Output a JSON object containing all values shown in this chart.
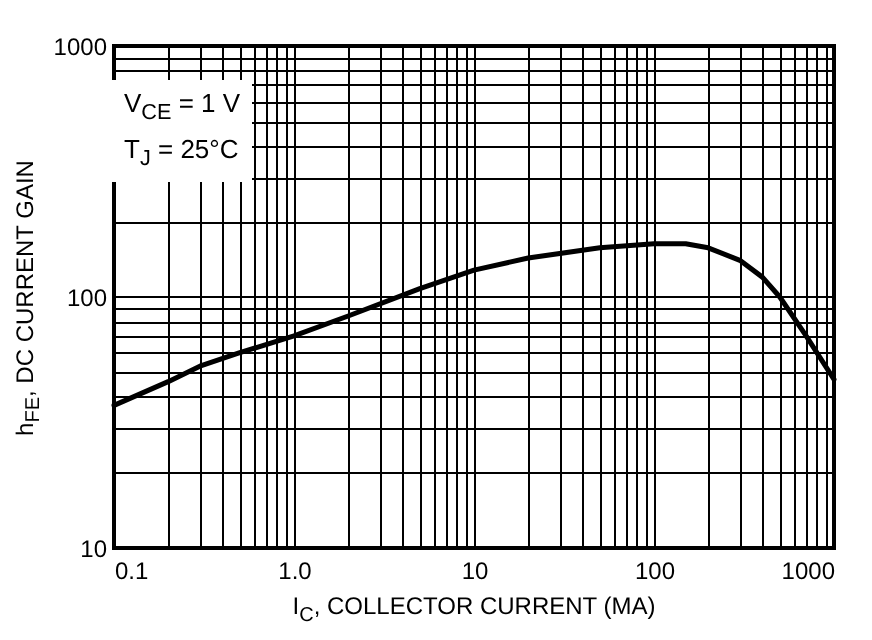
{
  "chart_data": {
    "type": "line",
    "xlabel": "I$_{C}$, COLLECTOR CURRENT (MA)",
    "ylabel": "h$_{FE}$, DC CURRENT GAIN",
    "annotations": [
      "V$_{CE}$ = 1 V",
      "T$_{J}$ = 25°C"
    ],
    "log": "xy",
    "grid": true,
    "xlim": [
      0.1,
      1000
    ],
    "ylim": [
      10,
      1000
    ],
    "xticks": [
      {
        "value": 0.1,
        "label": "0.1"
      },
      {
        "value": 0.2,
        "label": null
      },
      {
        "value": 0.3,
        "label": null
      },
      {
        "value": 0.4,
        "label": null
      },
      {
        "value": 0.5,
        "label": null
      },
      {
        "value": 0.6,
        "label": null
      },
      {
        "value": 0.7,
        "label": null
      },
      {
        "value": 0.8,
        "label": null
      },
      {
        "value": 0.9,
        "label": null
      },
      {
        "value": 1,
        "label": "1.0"
      },
      {
        "value": 2,
        "label": null
      },
      {
        "value": 3,
        "label": null
      },
      {
        "value": 4,
        "label": null
      },
      {
        "value": 5,
        "label": null
      },
      {
        "value": 6,
        "label": null
      },
      {
        "value": 7,
        "label": null
      },
      {
        "value": 8,
        "label": null
      },
      {
        "value": 9,
        "label": null
      },
      10,
      {
        "value": 20,
        "label": null
      },
      {
        "value": 30,
        "label": null
      },
      {
        "value": 40,
        "label": null
      },
      {
        "value": 50,
        "label": null
      },
      {
        "value": 60,
        "label": null
      },
      {
        "value": 70,
        "label": null
      },
      {
        "value": 80,
        "label": null
      },
      {
        "value": 90,
        "label": null
      },
      100,
      {
        "value": 200,
        "label": null
      },
      {
        "value": 300,
        "label": null
      },
      {
        "value": 400,
        "label": null
      },
      {
        "value": 500,
        "label": null
      },
      {
        "value": 600,
        "label": null
      },
      {
        "value": 700,
        "label": null
      },
      {
        "value": 800,
        "label": null
      },
      {
        "value": 900,
        "label": null
      },
      1000
    ],
    "yticks": [
      10,
      {
        "value": 20,
        "label": null
      },
      {
        "value": 30,
        "label": null
      },
      {
        "value": 40,
        "label": null
      },
      {
        "value": 50,
        "label": null
      },
      {
        "value": 60,
        "label": null
      },
      {
        "value": 70,
        "label": null
      },
      {
        "value": 80,
        "label": null
      },
      {
        "value": 90,
        "label": null
      },
      100,
      {
        "value": 200,
        "label": null
      },
      {
        "value": 300,
        "label": null
      },
      {
        "value": 400,
        "label": null
      },
      {
        "value": 500,
        "label": null
      },
      {
        "value": 600,
        "label": null
      },
      {
        "value": 700,
        "label": null
      },
      {
        "value": 800,
        "label": null
      },
      {
        "value": 900,
        "label": null
      },
      1000
    ],
    "x": [
      0.1,
      0.2,
      0.3,
      0.5,
      1,
      2,
      5,
      10,
      20,
      50,
      100,
      150,
      200,
      300,
      400,
      500,
      700,
      1000
    ],
    "series": [
      {
        "color": "#000000",
        "values": [
          37,
          46,
          53,
          60,
          70,
          84,
          108,
          128,
          143,
          157,
          163,
          163,
          157,
          140,
          120,
          100,
          70,
          47
        ]
      }
    ]
  }
}
